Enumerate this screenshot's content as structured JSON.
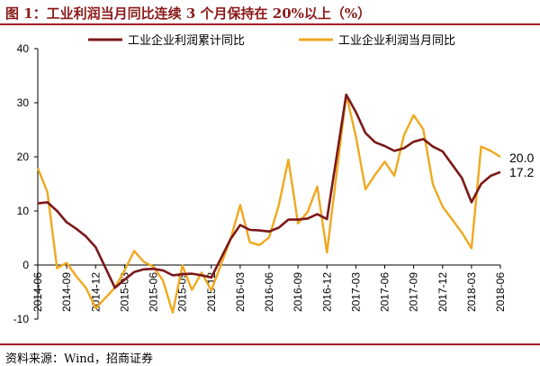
{
  "header": {
    "title": "图 1：工业利润当月同比连续 3 个月保持在 20%以上（%）"
  },
  "footer": {
    "source": "资料来源：Wind，招商证券"
  },
  "chart_data": {
    "type": "line",
    "ylim": [
      -10,
      40
    ],
    "yticks": [
      -10,
      0,
      10,
      20,
      30,
      40
    ],
    "x": [
      "2014-06",
      "2014-07",
      "2014-08",
      "2014-09",
      "2014-10",
      "2014-11",
      "2014-12",
      "2015-01",
      "2015-02",
      "2015-03",
      "2015-04",
      "2015-05",
      "2015-06",
      "2015-07",
      "2015-08",
      "2015-09",
      "2015-10",
      "2015-11",
      "2015-12",
      "2016-01",
      "2016-02",
      "2016-03",
      "2016-04",
      "2016-05",
      "2016-06",
      "2016-07",
      "2016-08",
      "2016-09",
      "2016-10",
      "2016-11",
      "2016-12",
      "2017-01",
      "2017-02",
      "2017-03",
      "2017-04",
      "2017-05",
      "2017-06",
      "2017-07",
      "2017-08",
      "2017-09",
      "2017-10",
      "2017-11",
      "2017-12",
      "2018-01",
      "2018-02",
      "2018-03",
      "2018-04",
      "2018-05",
      "2018-06"
    ],
    "xtick_labels": [
      "2014-06",
      "2014-09",
      "2014-12",
      "2015-03",
      "2015-06",
      "2015-09",
      "2015-12",
      "2016-03",
      "2016-06",
      "2016-09",
      "2016-12",
      "2017-03",
      "2017-06",
      "2017-09",
      "2017-12",
      "2018-03",
      "2018-06"
    ],
    "series": [
      {
        "name": "工业企业利润累计同比",
        "color": "#7b1818",
        "values": [
          11.4,
          11.6,
          10.0,
          7.9,
          6.7,
          5.3,
          3.3,
          null,
          -4.2,
          -2.7,
          -1.3,
          -0.8,
          -0.7,
          -1.0,
          -1.9,
          -1.7,
          -1.6,
          -1.9,
          -2.3,
          null,
          4.8,
          7.4,
          6.5,
          6.4,
          6.2,
          6.9,
          8.4,
          8.4,
          8.6,
          9.4,
          8.5,
          null,
          31.5,
          28.3,
          24.4,
          22.7,
          22.0,
          21.1,
          21.6,
          22.8,
          23.3,
          21.9,
          21.0,
          null,
          16.1,
          11.6,
          15.0,
          16.5,
          17.2
        ]
      },
      {
        "name": "工业企业利润当月同比",
        "color": "#f0a81e",
        "values": [
          17.9,
          13.5,
          -0.6,
          0.4,
          -2.1,
          -4.2,
          -8.0,
          null,
          -4.2,
          -1.0,
          2.6,
          0.6,
          -0.3,
          -2.9,
          -8.8,
          -0.1,
          -4.6,
          -1.4,
          -4.7,
          null,
          4.8,
          11.1,
          4.2,
          3.7,
          5.1,
          11.0,
          19.5,
          7.7,
          9.8,
          14.5,
          2.3,
          null,
          31.5,
          23.8,
          14.0,
          16.7,
          19.1,
          16.5,
          24.0,
          27.7,
          25.1,
          14.9,
          10.8,
          null,
          6.0,
          3.1,
          21.9,
          21.1,
          20.0
        ]
      }
    ],
    "end_labels": [
      "20.0",
      "17.2"
    ]
  },
  "colors": {
    "accent": "#a31d24",
    "dark_series": "#7b1818",
    "gold_series": "#f0a81e"
  }
}
